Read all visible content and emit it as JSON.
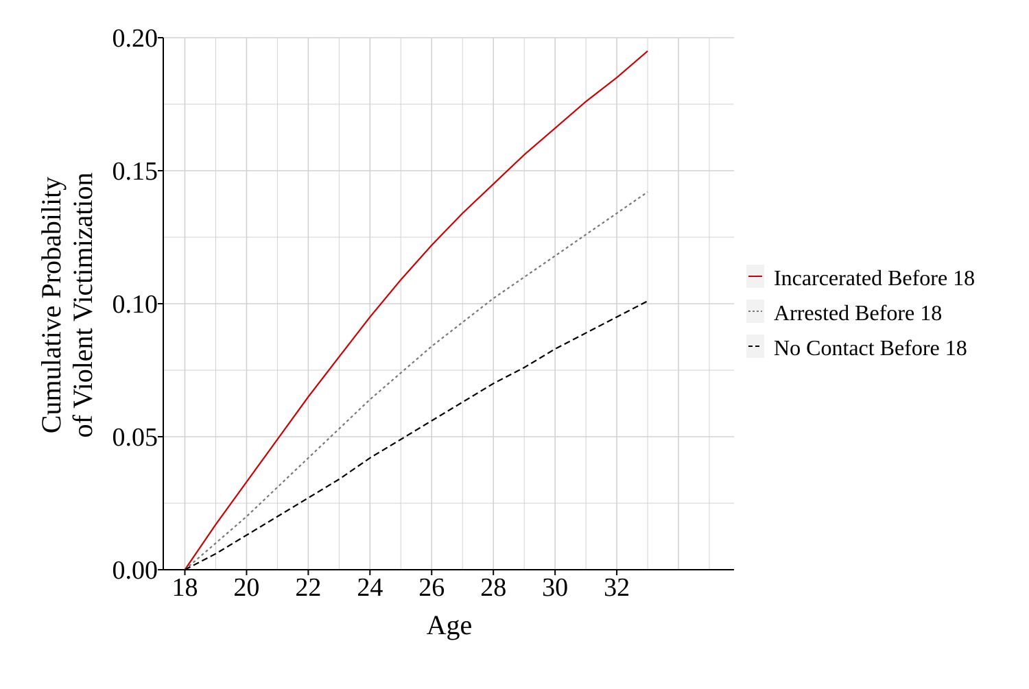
{
  "chart_data": {
    "type": "line",
    "xlabel": "Age",
    "ylabel_lines": [
      "Cumulative Probability",
      "of Violent Victimization"
    ],
    "xlim": [
      17.3,
      35.8
    ],
    "ylim": [
      0,
      0.2
    ],
    "x_ticks": [
      18,
      20,
      22,
      24,
      26,
      28,
      30,
      32
    ],
    "y_ticks": [
      0,
      0.05,
      0.1,
      0.15,
      0.2
    ],
    "y_tick_labels": [
      "0.00",
      "0.05",
      "0.10",
      "0.15",
      "0.20"
    ],
    "grid": true,
    "legend_position": "right",
    "x": [
      18,
      19,
      20,
      21,
      22,
      23,
      24,
      25,
      26,
      27,
      28,
      29,
      30,
      31,
      32,
      33
    ],
    "series": [
      {
        "name": "Incarcerated Before 18",
        "color": "#cc0000",
        "style": "solid",
        "values": [
          0.0,
          0.017,
          0.033,
          0.049,
          0.065,
          0.08,
          0.095,
          0.109,
          0.122,
          0.134,
          0.145,
          0.156,
          0.166,
          0.176,
          0.185,
          0.195
        ]
      },
      {
        "name": "Arrested Before 18",
        "color": "#777777",
        "style": "dotted",
        "values": [
          0.0,
          0.01,
          0.02,
          0.031,
          0.042,
          0.053,
          0.064,
          0.074,
          0.084,
          0.093,
          0.102,
          0.11,
          0.118,
          0.126,
          0.134,
          0.142
        ]
      },
      {
        "name": "No Contact Before 18",
        "color": "#000000",
        "style": "dashed",
        "values": [
          0.0,
          0.006,
          0.013,
          0.02,
          0.027,
          0.034,
          0.042,
          0.049,
          0.056,
          0.063,
          0.07,
          0.076,
          0.083,
          0.089,
          0.095,
          0.101
        ]
      }
    ]
  }
}
